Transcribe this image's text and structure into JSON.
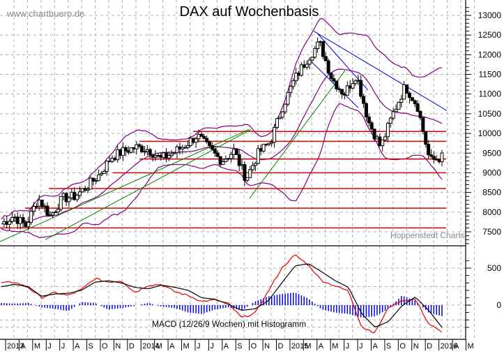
{
  "header": {
    "title": "DAX auf Wochenbasis",
    "watermark": "www.chartbuero.de",
    "source": "Hoppenstedt Charts"
  },
  "macd_panel": {
    "label": "MACD (12/26/9 Wochen) mit Histogramm"
  },
  "colors": {
    "candle": "#000000",
    "bollinger": "#800080",
    "support_resistance": "#e00000",
    "trend_up": "#008000",
    "trend_down": "#0000e0",
    "macd": "#000000",
    "signal": "#e00000",
    "histogram": "#0000e0",
    "grid": "#b0b0b0"
  },
  "chart_data": [
    {
      "type": "candlestick",
      "title": "DAX auf Wochenbasis",
      "xlabel": "",
      "ylabel": "",
      "ylim": [
        7100,
        13250
      ],
      "yticks": [
        7500,
        8000,
        8500,
        9000,
        9500,
        10000,
        10500,
        11000,
        11500,
        12000,
        12500,
        13000
      ],
      "xticks": [
        "2013",
        "A",
        "M",
        "J",
        "J",
        "A",
        "S",
        "O",
        "N",
        "D",
        "2014",
        "M",
        "A",
        "M",
        "J",
        "J",
        "A",
        "S",
        "O",
        "N",
        "D",
        "2015",
        "M",
        "A",
        "M",
        "J",
        "J",
        "A",
        "S",
        "O",
        "N",
        "D",
        "2016",
        "A",
        "M"
      ],
      "grid": true,
      "horizontal_levels": [
        7600,
        8100,
        8600,
        9000,
        9350,
        9800,
        10050
      ],
      "approx_weekly_close": [
        {
          "x": "2013-01",
          "v": 7700
        },
        {
          "x": "2013-03",
          "v": 7900
        },
        {
          "x": "2013-04",
          "v": 7650
        },
        {
          "x": "2013-05",
          "v": 8350
        },
        {
          "x": "2013-06",
          "v": 7900
        },
        {
          "x": "2013-07",
          "v": 8350
        },
        {
          "x": "2013-08",
          "v": 8400
        },
        {
          "x": "2013-09",
          "v": 8650
        },
        {
          "x": "2013-10",
          "v": 8950
        },
        {
          "x": "2013-11",
          "v": 9400
        },
        {
          "x": "2013-12",
          "v": 9550
        },
        {
          "x": "2014-01",
          "v": 9650
        },
        {
          "x": "2014-02",
          "v": 9600
        },
        {
          "x": "2014-03",
          "v": 9350
        },
        {
          "x": "2014-04",
          "v": 9500
        },
        {
          "x": "2014-05",
          "v": 9700
        },
        {
          "x": "2014-06",
          "v": 9950
        },
        {
          "x": "2014-07",
          "v": 9600
        },
        {
          "x": "2014-08",
          "v": 9300
        },
        {
          "x": "2014-09",
          "v": 9550
        },
        {
          "x": "2014-10",
          "v": 8850
        },
        {
          "x": "2014-11",
          "v": 9500
        },
        {
          "x": "2014-12",
          "v": 9800
        },
        {
          "x": "2015-01",
          "v": 10700
        },
        {
          "x": "2015-02",
          "v": 11400
        },
        {
          "x": "2015-03",
          "v": 11900
        },
        {
          "x": "2015-04",
          "v": 12300
        },
        {
          "x": "2015-05",
          "v": 11400
        },
        {
          "x": "2015-06",
          "v": 11000
        },
        {
          "x": "2015-07",
          "v": 11500
        },
        {
          "x": "2015-08",
          "v": 10300
        },
        {
          "x": "2015-09",
          "v": 9650
        },
        {
          "x": "2015-10",
          "v": 10500
        },
        {
          "x": "2015-11",
          "v": 11200
        },
        {
          "x": "2015-12",
          "v": 10700
        },
        {
          "x": "2016-01",
          "v": 9300
        },
        {
          "x": "2016-02",
          "v": 9400
        }
      ],
      "annotations": [
        "Bollinger Bands",
        "Green uptrend lines",
        "Blue downtrend channel",
        "Red horizontal support/resistance lines"
      ]
    },
    {
      "type": "line",
      "title": "MACD (12/26/9 Wochen) mit Histogramm",
      "ylim": [
        -350,
        720
      ],
      "yticks": [
        0,
        500
      ],
      "series": [
        {
          "name": "MACD",
          "color": "#000000",
          "values": [
            250,
            280,
            250,
            120,
            150,
            160,
            200,
            310,
            330,
            300,
            240,
            220,
            270,
            240,
            200,
            100,
            80,
            10,
            -70,
            -50,
            60,
            300,
            530,
            560,
            450,
            330,
            240,
            -120,
            -300,
            -220,
            -10,
            110,
            -70,
            -300
          ]
        },
        {
          "name": "Signal",
          "color": "#e00000",
          "values": [
            300,
            310,
            240,
            100,
            170,
            130,
            210,
            360,
            310,
            330,
            170,
            270,
            280,
            180,
            130,
            50,
            70,
            20,
            -170,
            -110,
            190,
            500,
            680,
            540,
            330,
            260,
            190,
            -300,
            -370,
            -30,
            60,
            80,
            -250,
            -370
          ]
        },
        {
          "name": "Histogramm",
          "color": "#0000e0",
          "values": [
            30,
            20,
            30,
            -30,
            -50,
            -80,
            40,
            30,
            -60,
            -40,
            -10,
            30,
            -20,
            -40,
            -100,
            -120,
            -60,
            -30,
            -70,
            50,
            120,
            150,
            170,
            90,
            -60,
            -100,
            -120,
            -170,
            -150,
            -50,
            130,
            60,
            -100,
            -150
          ]
        }
      ]
    }
  ]
}
